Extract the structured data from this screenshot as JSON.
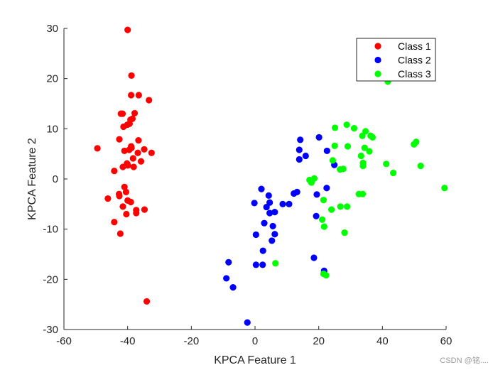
{
  "chart_data": {
    "type": "scatter",
    "title": "",
    "xlabel": "KPCA Feature 1",
    "ylabel": "KPCA Feature 2",
    "xlim": [
      -60,
      60
    ],
    "ylim": [
      -30,
      30
    ],
    "xticks": [
      -60,
      -40,
      -20,
      0,
      20,
      40,
      60
    ],
    "yticks": [
      -30,
      -20,
      -10,
      0,
      10,
      20,
      30
    ],
    "grid": false,
    "legend_position": "top-right",
    "series": [
      {
        "name": "Class 1",
        "color": "#ff0000",
        "points": [
          [
            -40,
            29.7
          ],
          [
            -38.8,
            20.6
          ],
          [
            -38.9,
            16.7
          ],
          [
            -36.5,
            16.7
          ],
          [
            -33.3,
            15.7
          ],
          [
            -42.1,
            13
          ],
          [
            -41.6,
            13
          ],
          [
            -37.8,
            13.1
          ],
          [
            -39.1,
            11.8
          ],
          [
            -38.5,
            12
          ],
          [
            -39.4,
            11
          ],
          [
            -41.3,
            10.4
          ],
          [
            -40.1,
            10.8
          ],
          [
            -42.6,
            7.9
          ],
          [
            -36.6,
            7.7
          ],
          [
            -49.5,
            6.1
          ],
          [
            -38.8,
            6.2
          ],
          [
            -38.9,
            6.5
          ],
          [
            -34.8,
            5.9
          ],
          [
            -41,
            5.6
          ],
          [
            -39.5,
            5.8
          ],
          [
            -32.5,
            5.2
          ],
          [
            -36.8,
            5.2
          ],
          [
            -38.3,
            4.1
          ],
          [
            -35.8,
            3.5
          ],
          [
            -40.2,
            3.1
          ],
          [
            -44.2,
            1.6
          ],
          [
            -41.5,
            2.4
          ],
          [
            -39.9,
            2.7
          ],
          [
            -38.1,
            2.4
          ],
          [
            -41,
            -1.6
          ],
          [
            -42.7,
            -3
          ],
          [
            -42.6,
            -3.4
          ],
          [
            -40.5,
            -2.6
          ],
          [
            -46.2,
            -3.9
          ],
          [
            -40,
            -4.3
          ],
          [
            -39,
            -4.6
          ],
          [
            -41.5,
            -5.5
          ],
          [
            -37.3,
            -6.2
          ],
          [
            -34.7,
            -6.1
          ],
          [
            -37.3,
            -6.8
          ],
          [
            -40.4,
            -7
          ],
          [
            -44.2,
            -8.6
          ],
          [
            -42.3,
            -10.9
          ],
          [
            -34,
            -24.4
          ]
        ]
      },
      {
        "name": "Class 2",
        "color": "#0000ff",
        "points": [
          [
            20.1,
            8.3
          ],
          [
            14.2,
            7.8
          ],
          [
            13.9,
            5.8
          ],
          [
            22.6,
            5.6
          ],
          [
            15.9,
            4.6
          ],
          [
            13.9,
            3.9
          ],
          [
            24.9,
            2.8
          ],
          [
            22.5,
            -1.8
          ],
          [
            13.2,
            -2.6
          ],
          [
            12.2,
            -2.9
          ],
          [
            2,
            -2
          ],
          [
            19.4,
            -3.1
          ],
          [
            4.3,
            -3.3
          ],
          [
            4.6,
            -4.7
          ],
          [
            -0.2,
            -4.8
          ],
          [
            8.7,
            -5
          ],
          [
            10.7,
            -5
          ],
          [
            3.6,
            -5.6
          ],
          [
            6.2,
            -6.6
          ],
          [
            4.6,
            -6.8
          ],
          [
            19.2,
            -7.4
          ],
          [
            2.9,
            -8.8
          ],
          [
            5.6,
            -9.4
          ],
          [
            6.2,
            -11
          ],
          [
            0.3,
            -11.1
          ],
          [
            5.3,
            -12.3
          ],
          [
            2.5,
            -14.3
          ],
          [
            18.5,
            -15.7
          ],
          [
            -8.3,
            -16.6
          ],
          [
            0.3,
            -17.1
          ],
          [
            2.4,
            -17.1
          ],
          [
            21.7,
            -18.3
          ],
          [
            -9,
            -19.8
          ],
          [
            -6.9,
            -21.6
          ],
          [
            -2.4,
            -28.6
          ]
        ]
      },
      {
        "name": "Class 3",
        "color": "#00ff00",
        "points": [
          [
            41.7,
            19.4
          ],
          [
            28.8,
            10.8
          ],
          [
            25.1,
            10.2
          ],
          [
            31.1,
            10.1
          ],
          [
            34.7,
            9.5
          ],
          [
            36.3,
            8.6
          ],
          [
            36.9,
            8.3
          ],
          [
            33.7,
            8.6
          ],
          [
            50.6,
            7.4
          ],
          [
            49.9,
            6.9
          ],
          [
            25,
            6.6
          ],
          [
            29.1,
            6.5
          ],
          [
            34.4,
            6.2
          ],
          [
            35.9,
            5.5
          ],
          [
            33.3,
            4.6
          ],
          [
            24.4,
            3.7
          ],
          [
            33.9,
            3.2
          ],
          [
            41.2,
            3
          ],
          [
            33.9,
            2.6
          ],
          [
            52,
            2.6
          ],
          [
            27.7,
            2
          ],
          [
            26.7,
            1.9
          ],
          [
            43.4,
            1.2
          ],
          [
            18.6,
            0.1
          ],
          [
            17.1,
            -0.2
          ],
          [
            17.7,
            -0.7
          ],
          [
            59.5,
            -1.8
          ],
          [
            32.6,
            -3
          ],
          [
            33.8,
            -3
          ],
          [
            21.5,
            -4.2
          ],
          [
            26.8,
            -5.5
          ],
          [
            28.9,
            -5.5
          ],
          [
            24,
            -6.1
          ],
          [
            21.1,
            -8.1
          ],
          [
            21.7,
            -9.5
          ],
          [
            28.1,
            -10.7
          ],
          [
            6.4,
            -16.8
          ],
          [
            21.5,
            -18.9
          ],
          [
            22.3,
            -19.2
          ]
        ]
      }
    ]
  },
  "watermark": "CSDN @铭...."
}
